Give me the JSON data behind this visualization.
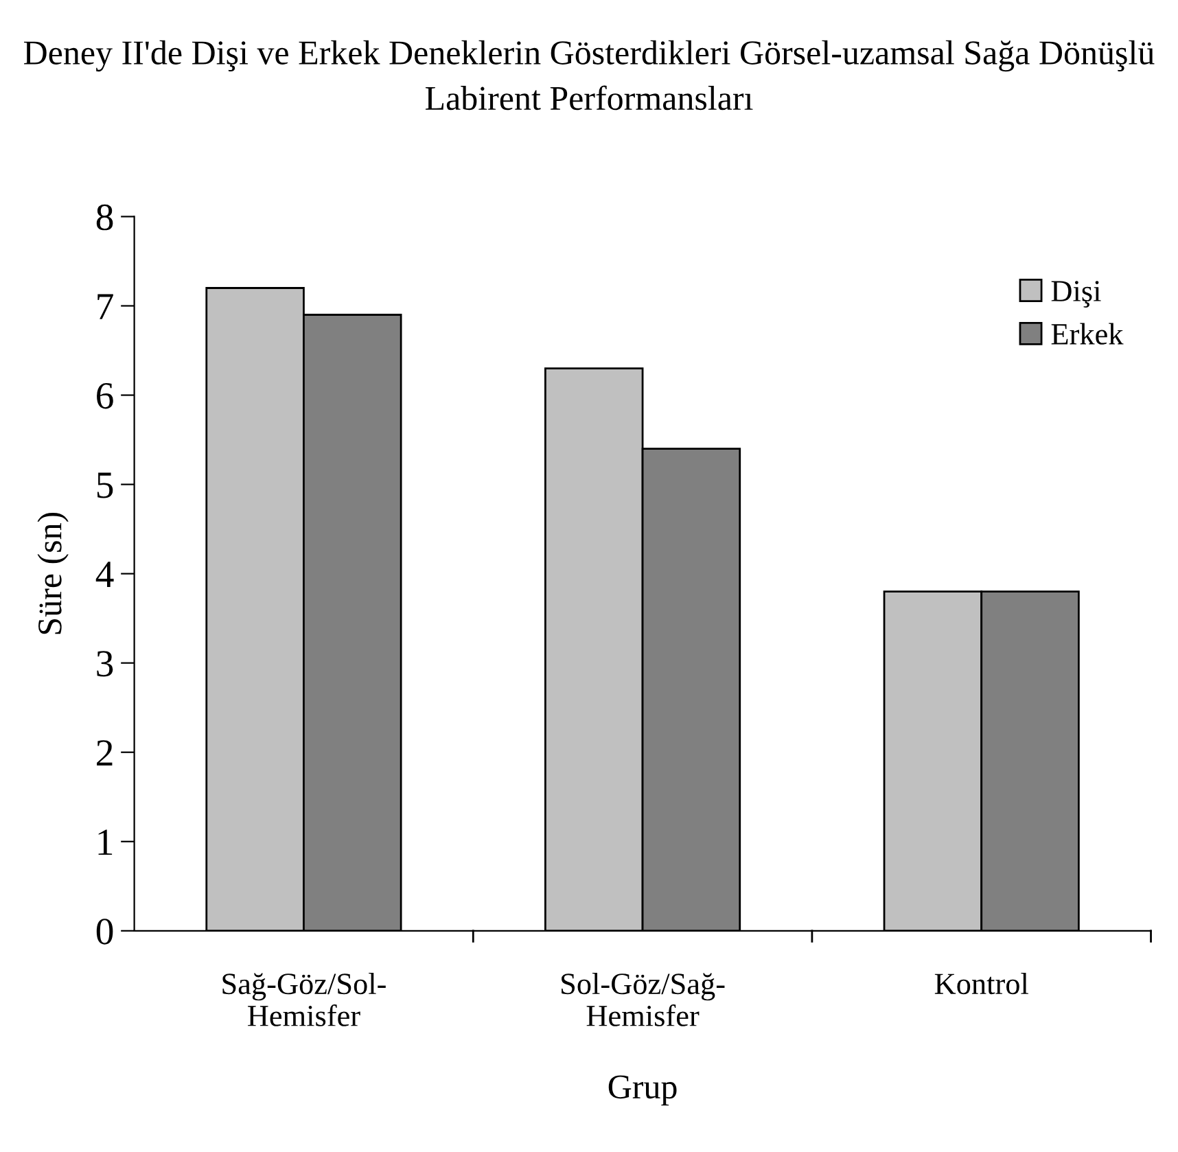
{
  "chart_data": {
    "type": "bar",
    "title": "Deney II'de Dişi ve Erkek Deneklerin Gösterdikleri Görsel-uzamsal Sağa Dönüşlü Labirent Performansları",
    "xlabel": "Grup",
    "ylabel": "Süre (sn)",
    "categories": [
      "Sağ-Göz/Sol-Hemisfer",
      "Sol-Göz/Sağ-Hemisfer",
      "Kontrol"
    ],
    "series": [
      {
        "name": "Dişi",
        "color": "#c0c0c0",
        "values": [
          7.2,
          6.3,
          3.8
        ]
      },
      {
        "name": "Erkek",
        "color": "#808080",
        "values": [
          6.9,
          5.4,
          3.8
        ]
      }
    ],
    "ylim": [
      0,
      8
    ],
    "yticks": [
      0,
      1,
      2,
      3,
      4,
      5,
      6,
      7,
      8
    ],
    "grid": false,
    "legend": "top right"
  }
}
